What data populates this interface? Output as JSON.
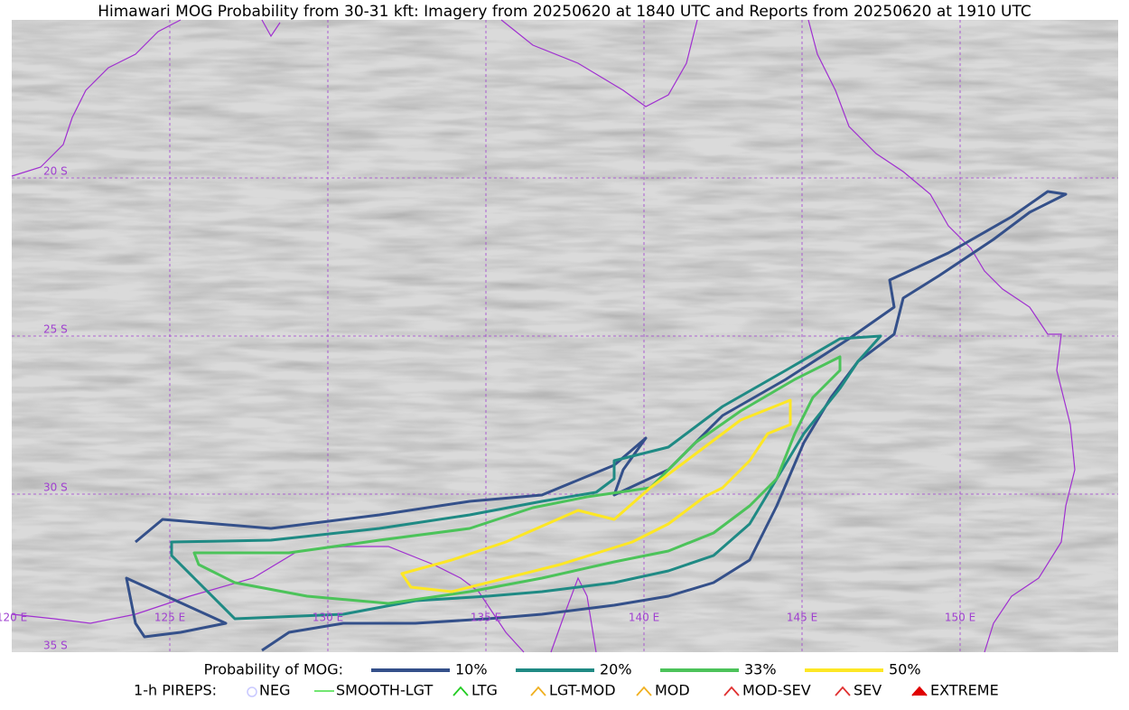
{
  "title": "Himawari MOG Probability from 30-31 kft: Imagery from 20250620 at 1840 UTC and Reports from 20250620 at 1910 UTC",
  "map": {
    "lat_labels": [
      "20 S",
      "25 S",
      "30 S",
      "35 S"
    ],
    "lon_labels": [
      "120 E",
      "125 E",
      "130 E",
      "135 E",
      "140 E",
      "145 E",
      "150 E"
    ]
  },
  "legend": {
    "probability": {
      "title": "Probability of MOG:",
      "items": [
        "10%",
        "20%",
        "33%",
        "50%"
      ]
    },
    "pireps": {
      "title": "1-h PIREPS:",
      "items": [
        "NEG",
        "SMOOTH-LGT",
        "LTG",
        "LGT-MOD",
        "MOD",
        "MOD-SEV",
        "SEV",
        "EXTREME"
      ]
    }
  }
}
